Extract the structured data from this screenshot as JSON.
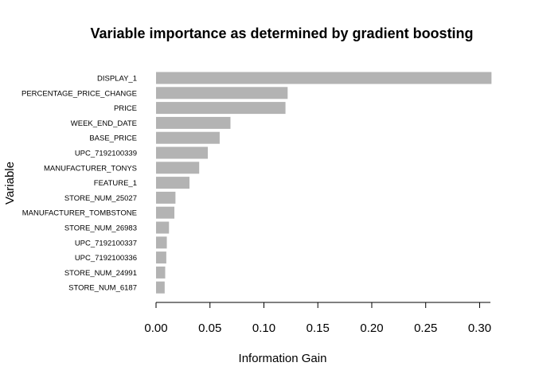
{
  "chart_data": {
    "type": "bar",
    "orientation": "horizontal",
    "title": "Variable importance as determined by gradient boosting",
    "xlabel": "Information Gain",
    "ylabel": "Variable",
    "categories": [
      "DISPLAY_1",
      "PERCENTAGE_PRICE_CHANGE",
      "PRICE",
      "WEEK_END_DATE",
      "BASE_PRICE",
      "UPC_7192100339",
      "MANUFACTURER_TONYS",
      "FEATURE_1",
      "STORE_NUM_25027",
      "MANUFACTURER_TOMBSTONE",
      "STORE_NUM_26983",
      "UPC_7192100337",
      "UPC_7192100336",
      "STORE_NUM_24991",
      "STORE_NUM_6187"
    ],
    "values": [
      0.311,
      0.122,
      0.12,
      0.069,
      0.059,
      0.048,
      0.04,
      0.031,
      0.018,
      0.017,
      0.012,
      0.01,
      0.0095,
      0.0085,
      0.008
    ],
    "xlim": [
      0,
      0.31
    ],
    "xticks": [
      0.0,
      0.05,
      0.1,
      0.15,
      0.2,
      0.25,
      0.3
    ],
    "xtick_labels": [
      "0.00",
      "0.05",
      "0.10",
      "0.15",
      "0.20",
      "0.25",
      "0.30"
    ],
    "bar_color": "#b3b3b3",
    "grid": false,
    "legend": "none"
  }
}
